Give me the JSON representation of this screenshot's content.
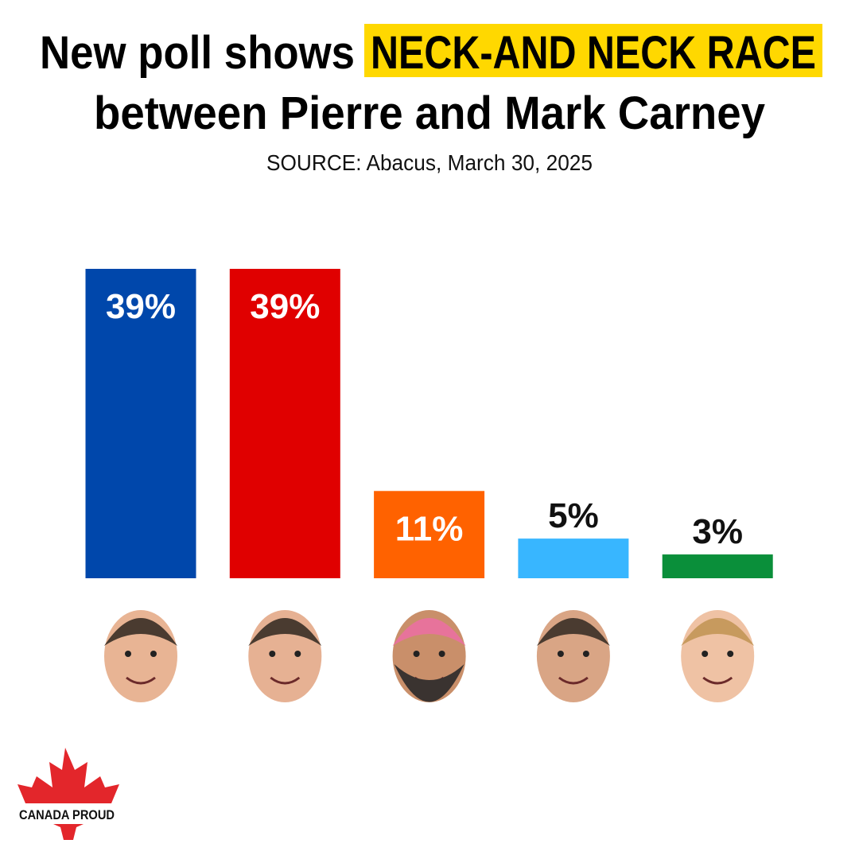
{
  "chart_data": {
    "type": "bar",
    "title": [
      "New poll shows",
      "NECK-AND NECK RACE",
      "between Pierre and Mark Carney"
    ],
    "subtitle": "SOURCE: Abacus, March 30, 2025",
    "categories": [
      null,
      null,
      null,
      null,
      null
    ],
    "values": [
      39,
      39,
      11,
      5,
      3
    ],
    "value_labels": [
      "39%",
      "39%",
      "11%",
      "5%",
      "3%"
    ],
    "colors": [
      "#0047ab",
      "#e00000",
      "#ff6200",
      "#38b6ff",
      "#0a8f3a"
    ],
    "highlight_color": "#ffd800"
  },
  "logo_text": "CANADA PROUD"
}
